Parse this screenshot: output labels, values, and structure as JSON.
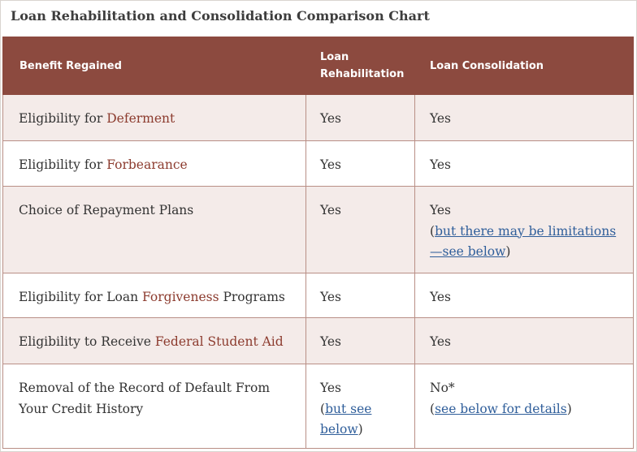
{
  "title": "Loan Rehabilitation and Consolidation Comparison Chart",
  "headers": {
    "benefit": "Benefit Regained",
    "rehab_line1": "Loan",
    "rehab_line2": "Rehabilitation",
    "consolidation": "Loan Consolidation"
  },
  "rows": [
    {
      "benefit_pre": "Eligibility for ",
      "benefit_term": "Deferment",
      "benefit_post": "",
      "rehab": "Yes",
      "consolidation": "Yes"
    },
    {
      "benefit_pre": "Eligibility for ",
      "benefit_term": "Forbearance",
      "benefit_post": "",
      "rehab": "Yes",
      "consolidation": "Yes"
    },
    {
      "benefit": "Choice of Repayment Plans",
      "rehab": "Yes",
      "consolidation": "Yes",
      "consolidation_open": "(",
      "consolidation_link_line1": "but there may be limitations",
      "consolidation_link_line2": "—see below",
      "consolidation_close": ")"
    },
    {
      "benefit_pre": "Eligibility for Loan ",
      "benefit_term": "Forgiveness",
      "benefit_post": " Programs",
      "rehab": "Yes",
      "consolidation": "Yes"
    },
    {
      "benefit_pre": "Eligibility to Receive ",
      "benefit_term": "Federal Student Aid",
      "benefit_post": "",
      "rehab": "Yes",
      "consolidation": "Yes"
    },
    {
      "benefit_line1": "Removal of the Record of Default From",
      "benefit_line2": "Your Credit History",
      "rehab": "Yes",
      "rehab_open": "(",
      "rehab_link_line1": "but see",
      "rehab_link_line2": "below",
      "rehab_close": ")",
      "consolidation": "No*",
      "consolidation_open": "(",
      "consolidation_link": "see below for details",
      "consolidation_close": ")"
    }
  ],
  "colors": {
    "header_bg": "#8c4a3f",
    "shade_row_bg": "#f4ebe9",
    "term_text": "#8c3b2e",
    "link_text": "#2f5e9a"
  }
}
